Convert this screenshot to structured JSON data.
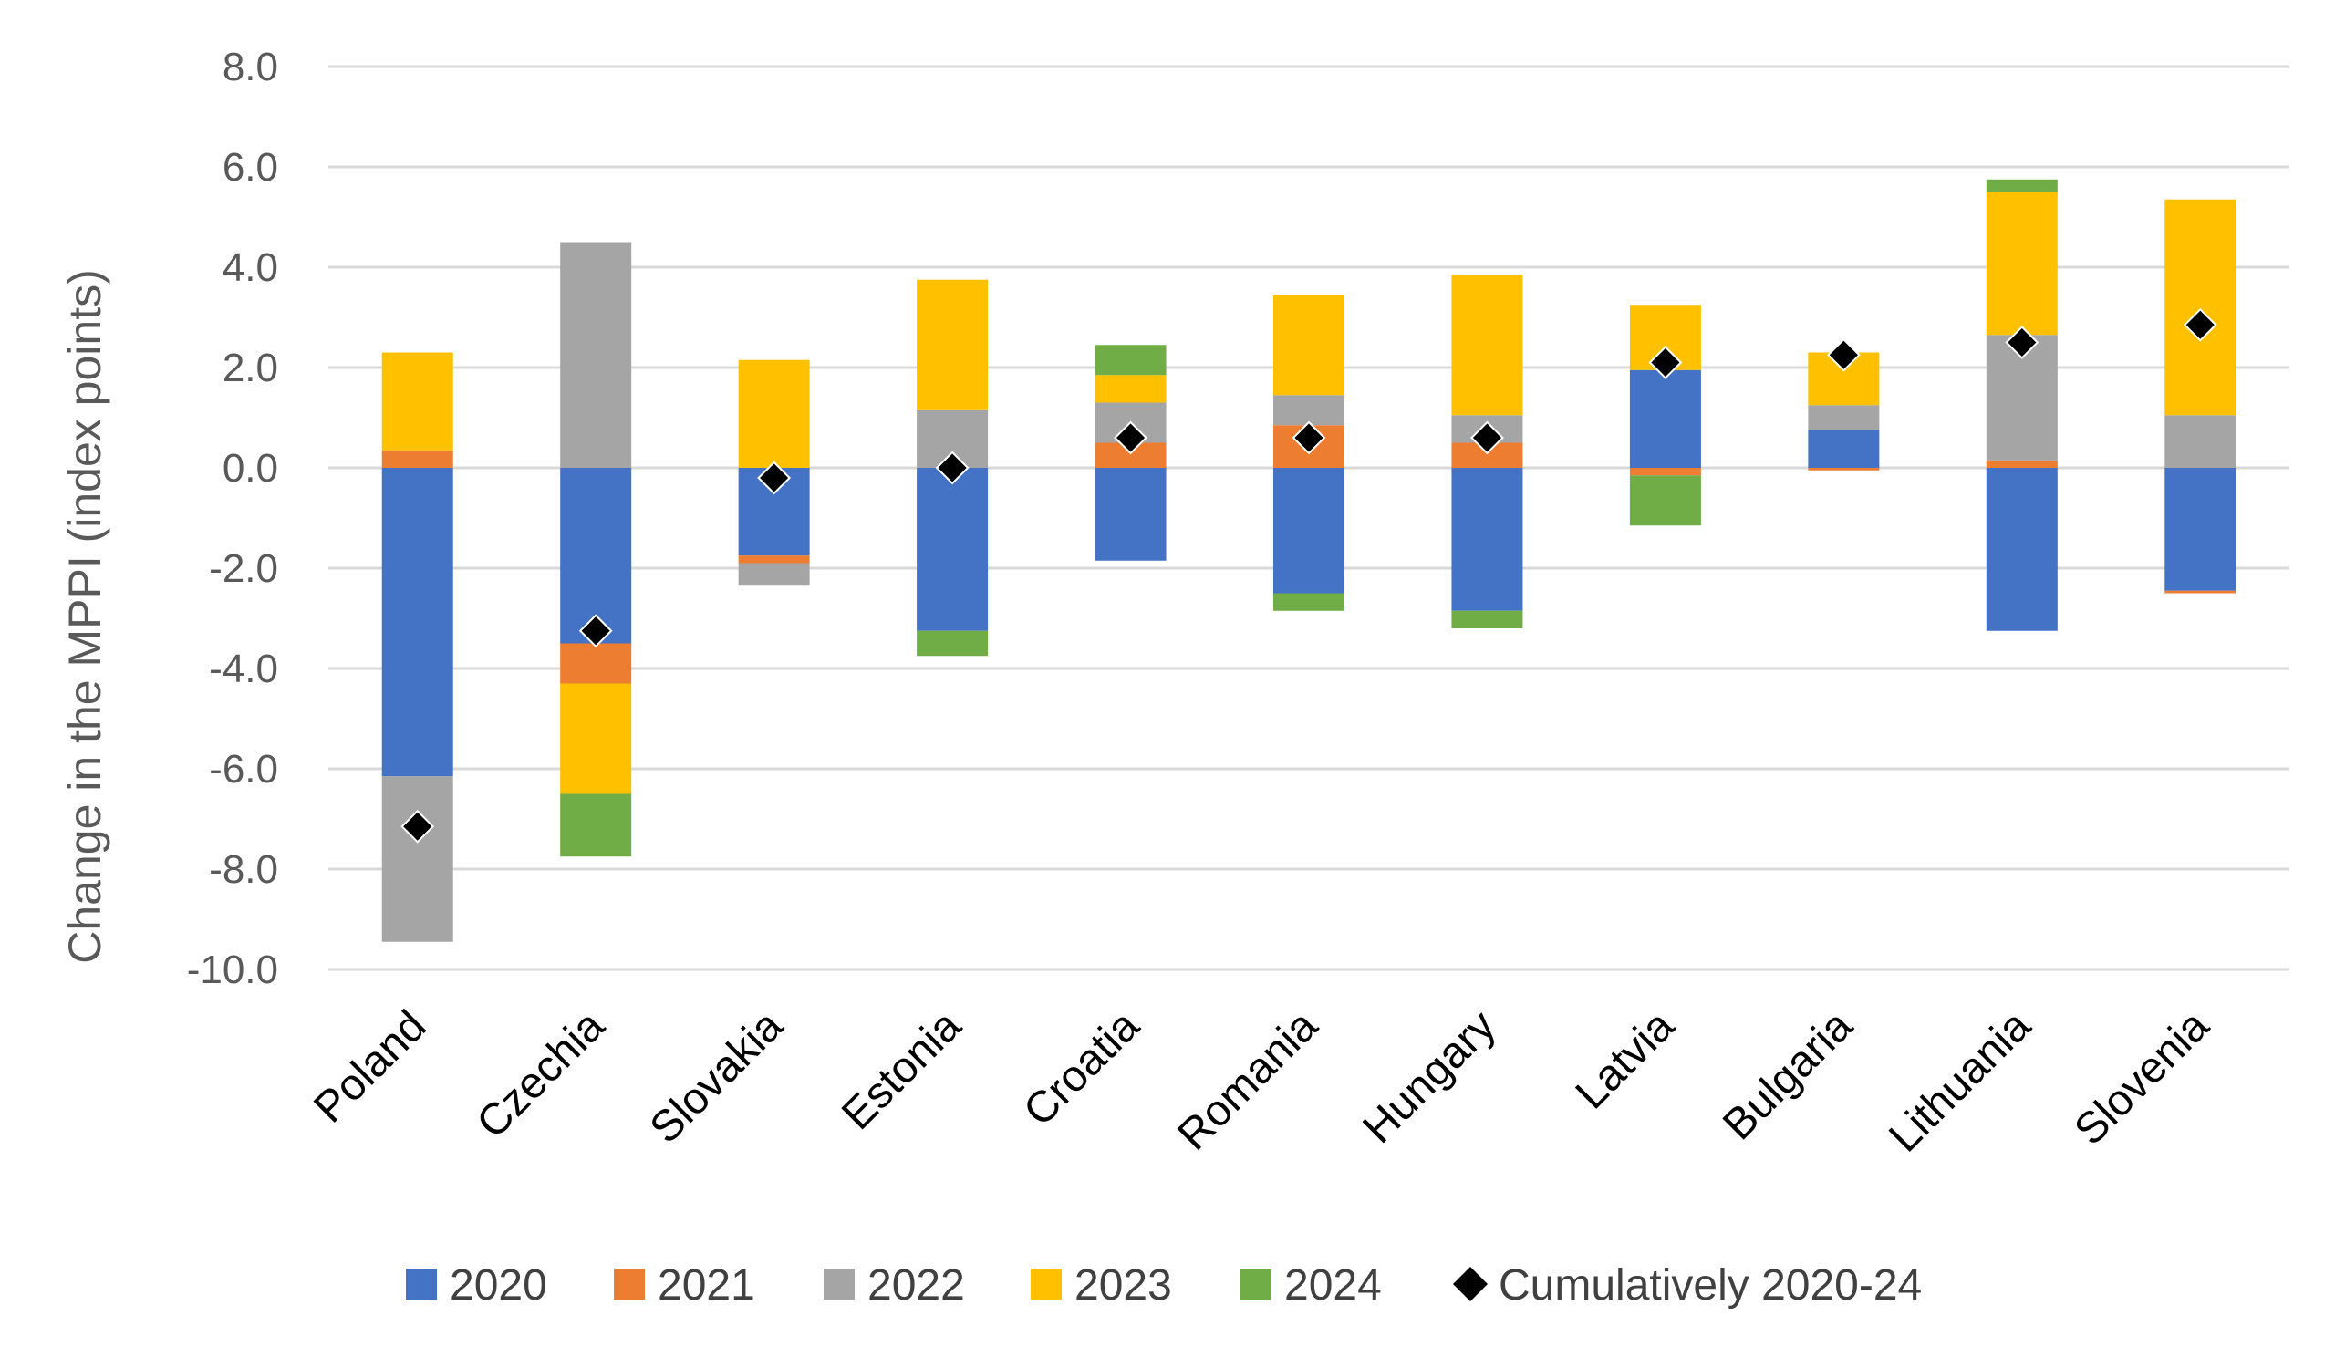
{
  "chart_data": {
    "type": "bar",
    "stacked": true,
    "ylabel": "Change in the MPPI (index points)",
    "xlabel": "",
    "ylim": [
      -10,
      8
    ],
    "yticks": [
      8,
      6,
      4,
      2,
      0,
      -2,
      -4,
      -6,
      -8,
      -10
    ],
    "ytick_labels": [
      "8.0",
      "6.0",
      "4.0",
      "2.0",
      "0.0",
      "-2.0",
      "-4.0",
      "-6.0",
      "-8.0",
      "-10.0"
    ],
    "grid": true,
    "legend_position": "bottom",
    "categories": [
      "Poland",
      "Czechia",
      "Slovakia",
      "Estonia",
      "Croatia",
      "Romania",
      "Hungary",
      "Latvia",
      "Bulgaria",
      "Lithuania",
      "Slovenia"
    ],
    "series": [
      {
        "name": "2020",
        "color": "#4472C4",
        "values": [
          -6.15,
          -3.5,
          -1.75,
          -3.25,
          -1.85,
          -2.5,
          -2.85,
          1.95,
          0.75,
          -3.25,
          -2.45
        ]
      },
      {
        "name": "2021",
        "color": "#ED7D31",
        "values": [
          0.35,
          -0.8,
          -0.15,
          0.0,
          0.5,
          0.85,
          0.5,
          -0.15,
          -0.05,
          0.15,
          -0.05
        ]
      },
      {
        "name": "2022",
        "color": "#A5A5A5",
        "values": [
          -3.3,
          4.5,
          -0.45,
          1.15,
          0.8,
          0.6,
          0.55,
          0.0,
          0.5,
          2.5,
          1.05
        ]
      },
      {
        "name": "2023",
        "color": "#FFC000",
        "values": [
          1.95,
          -2.2,
          2.15,
          2.6,
          0.55,
          2.0,
          2.8,
          1.3,
          1.05,
          2.85,
          4.3
        ]
      },
      {
        "name": "2024",
        "color": "#70AD47",
        "values": [
          0.0,
          -1.25,
          0.0,
          -0.5,
          0.6,
          -0.35,
          -0.35,
          -1.0,
          0.0,
          0.25,
          0.0
        ]
      }
    ],
    "markers": {
      "name": "Cumulatively 2020-24",
      "color": "#000000",
      "shape": "diamond",
      "values": [
        -7.15,
        -3.25,
        -0.2,
        0.0,
        0.6,
        0.6,
        0.6,
        2.1,
        2.25,
        2.5,
        2.85
      ]
    }
  }
}
